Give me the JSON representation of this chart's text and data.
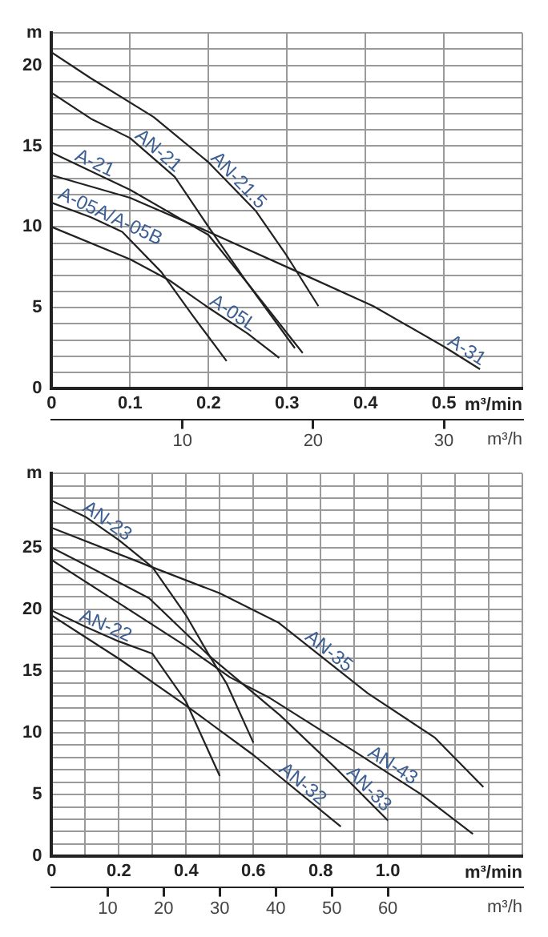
{
  "chart_data": [
    {
      "type": "line",
      "xlabel": "m³/min",
      "x2label": "m³/h",
      "ylabel": "m",
      "grid": true,
      "legend": false,
      "marker": "none",
      "line_style": "solid",
      "xlim": [
        0,
        0.6
      ],
      "xticks": [
        0,
        0.1,
        0.2,
        0.3,
        0.4,
        0.5,
        {
          "value": 0.6,
          "label": null
        }
      ],
      "x2lim": [
        0,
        36
      ],
      "x2ticks": [
        10,
        20,
        30
      ],
      "ylim": [
        0,
        22
      ],
      "yticks": [
        0,
        {
          "value": 1,
          "label": null
        },
        {
          "value": 2,
          "label": null
        },
        {
          "value": 3,
          "label": null
        },
        {
          "value": 4,
          "label": null
        },
        5,
        {
          "value": 6,
          "label": null
        },
        {
          "value": 7,
          "label": null
        },
        {
          "value": 8,
          "label": null
        },
        {
          "value": 9,
          "label": null
        },
        10,
        {
          "value": 11,
          "label": null
        },
        {
          "value": 12,
          "label": null
        },
        {
          "value": 13,
          "label": null
        },
        {
          "value": 14,
          "label": null
        },
        15,
        {
          "value": 16,
          "label": null
        },
        {
          "value": 17,
          "label": null
        },
        {
          "value": 18,
          "label": null
        },
        {
          "value": 19,
          "label": null
        },
        20,
        {
          "value": 21,
          "label": null
        },
        {
          "value": 22,
          "label": null
        }
      ],
      "series": [
        {
          "name": "AN-21.5",
          "color": "#222222",
          "x": [
            0,
            0.05,
            0.13,
            0.2,
            0.26,
            0.3,
            0.34
          ],
          "values": [
            20.8,
            19.2,
            16.8,
            14,
            11,
            8.2,
            5.1
          ]
        },
        {
          "name": "AN-21",
          "color": "#222222",
          "x": [
            0,
            0.05,
            0.1,
            0.157,
            0.2,
            0.25,
            0.32
          ],
          "values": [
            18.3,
            16.7,
            15.5,
            13.1,
            10,
            6.5,
            2.2
          ]
        },
        {
          "name": "A-21",
          "color": "#222222",
          "x": [
            0,
            0.1,
            0.2,
            0.25,
            0.31
          ],
          "values": [
            14.6,
            12.3,
            9.5,
            6.5,
            2.5
          ]
        },
        {
          "name": "A-31",
          "color": "#222222",
          "x": [
            0,
            0.1,
            0.2,
            0.31,
            0.41,
            0.5,
            0.546
          ],
          "values": [
            13.2,
            11.8,
            9.7,
            7.3,
            5.1,
            2.6,
            1.2
          ]
        },
        {
          "name": "A-05A/A-05B",
          "color": "#222222",
          "x": [
            0,
            0.05,
            0.09,
            0.14,
            0.18,
            0.223
          ],
          "values": [
            11.5,
            10.6,
            9.7,
            7.2,
            4.5,
            1.7
          ]
        },
        {
          "name": "A-05L",
          "color": "#222222",
          "x": [
            0,
            0.1,
            0.15,
            0.2,
            0.25,
            0.29
          ],
          "values": [
            10,
            8,
            6.7,
            5,
            3.4,
            1.9
          ]
        }
      ]
    },
    {
      "type": "line",
      "xlabel": "m³/min",
      "x2label": "m³/h",
      "ylabel": "m",
      "grid": true,
      "legend": false,
      "marker": "none",
      "line_style": "solid",
      "xlim": [
        0,
        1.4
      ],
      "xticks": [
        0,
        {
          "value": 0.1,
          "label": null
        },
        0.2,
        {
          "value": 0.3,
          "label": null
        },
        0.4,
        {
          "value": 0.5,
          "label": null
        },
        0.6,
        {
          "value": 0.7,
          "label": null
        },
        0.8,
        {
          "value": 0.9,
          "label": null
        },
        {
          "value": 1,
          "label": "1.0"
        },
        {
          "value": 1.1,
          "label": null
        },
        {
          "value": 1.2,
          "label": null
        },
        {
          "value": 1.3,
          "label": null
        },
        {
          "value": 1.4,
          "label": null
        }
      ],
      "x2lim": [
        0,
        84
      ],
      "x2ticks": [
        10,
        20,
        30,
        40,
        50,
        60
      ],
      "ylim": [
        0,
        31
      ],
      "yticks": [
        0,
        {
          "value": 1,
          "label": null
        },
        {
          "value": 2,
          "label": null
        },
        {
          "value": 3,
          "label": null
        },
        {
          "value": 4,
          "label": null
        },
        5,
        {
          "value": 6,
          "label": null
        },
        {
          "value": 7,
          "label": null
        },
        {
          "value": 8,
          "label": null
        },
        {
          "value": 9,
          "label": null
        },
        10,
        {
          "value": 11,
          "label": null
        },
        {
          "value": 12,
          "label": null
        },
        {
          "value": 13,
          "label": null
        },
        {
          "value": 14,
          "label": null
        },
        15,
        {
          "value": 16,
          "label": null
        },
        {
          "value": 17,
          "label": null
        },
        {
          "value": 18,
          "label": null
        },
        {
          "value": 19,
          "label": null
        },
        20,
        {
          "value": 21,
          "label": null
        },
        {
          "value": 22,
          "label": null
        },
        {
          "value": 23,
          "label": null
        },
        {
          "value": 24,
          "label": null
        },
        25,
        {
          "value": 26,
          "label": null
        },
        {
          "value": 27,
          "label": null
        },
        {
          "value": 28,
          "label": null
        },
        {
          "value": 29,
          "label": null
        },
        {
          "value": 30,
          "label": null
        },
        {
          "value": 31,
          "label": null
        }
      ],
      "series": [
        {
          "name": "AN-23",
          "color": "#222222",
          "x": [
            0,
            0.1,
            0.2,
            0.3,
            0.4,
            0.47,
            0.52,
            0.6
          ],
          "values": [
            28.8,
            27.5,
            25.6,
            23.4,
            19.5,
            16.2,
            14,
            9.2
          ]
        },
        {
          "name": "AN-35",
          "color": "#222222",
          "x": [
            0,
            0.3,
            0.5,
            0.676,
            0.94,
            1.14,
            1.284
          ],
          "values": [
            26.6,
            23.4,
            21.3,
            18.9,
            13.2,
            9.6,
            5.6
          ]
        },
        {
          "name": "AN-33",
          "color": "#222222",
          "x": [
            0,
            0.1,
            0.29,
            0.47,
            0.68,
            0.85,
            1
          ],
          "values": [
            25,
            23.6,
            20.9,
            16.2,
            11.4,
            7,
            2.9
          ]
        },
        {
          "name": "AN-43",
          "color": "#222222",
          "x": [
            0,
            0.2,
            0.4,
            0.53,
            0.65,
            0.9,
            1.1,
            1.253
          ],
          "values": [
            24,
            20.5,
            17,
            14.5,
            12.8,
            8.5,
            5,
            1.8
          ]
        },
        {
          "name": "AN-22",
          "color": "#222222",
          "x": [
            0,
            0.1,
            0.2,
            0.3,
            0.4,
            0.45,
            0.5
          ],
          "values": [
            19.9,
            18.6,
            17.4,
            16.4,
            12.5,
            9.5,
            6.5
          ]
        },
        {
          "name": "AN-32",
          "color": "#222222",
          "x": [
            0,
            0.2,
            0.4,
            0.6,
            0.86
          ],
          "values": [
            19.5,
            16,
            12.2,
            8.2,
            2.4
          ]
        }
      ]
    }
  ]
}
